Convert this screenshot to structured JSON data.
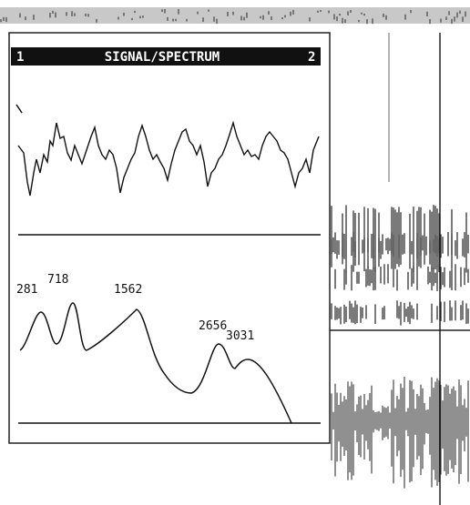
{
  "window": {
    "left_number": "1",
    "title": "SIGNAL/SPECTRUM",
    "right_number": "2"
  },
  "spectrum": {
    "peak_labels": [
      "281",
      "718",
      "1562",
      "2656",
      "3031"
    ]
  }
}
